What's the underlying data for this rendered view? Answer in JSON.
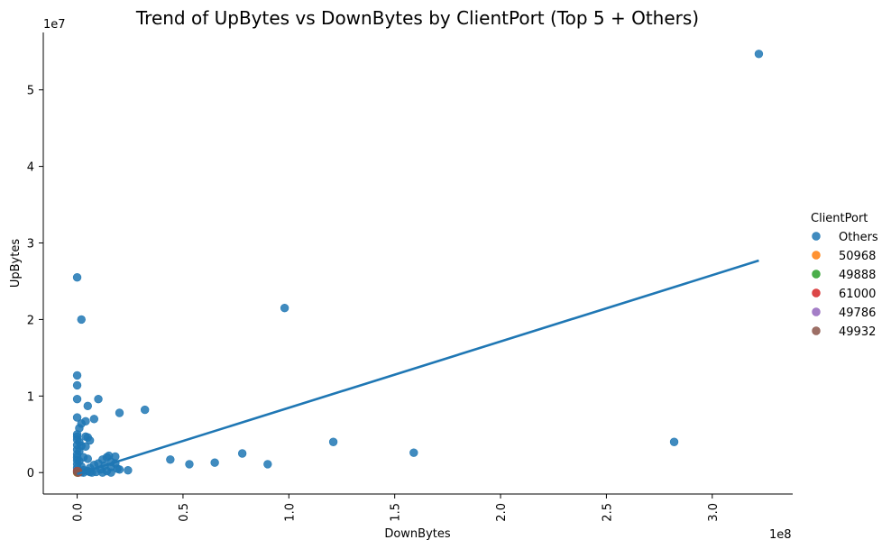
{
  "chart_data": {
    "type": "scatter",
    "title": "Trend of UpBytes vs DownBytes by ClientPort (Top 5 + Others)",
    "xlabel": "DownBytes",
    "ylabel": "UpBytes",
    "x_offset_text": "1e8",
    "y_offset_text": "1e7",
    "xlim": [
      -16000000,
      338000000
    ],
    "ylim": [
      -2800000,
      57500000
    ],
    "x_ticks": [
      0,
      50000000,
      100000000,
      150000000,
      200000000,
      250000000,
      300000000
    ],
    "x_tick_labels": [
      "0.0",
      "0.5",
      "1.0",
      "1.5",
      "2.0",
      "2.5",
      "3.0"
    ],
    "y_ticks": [
      0,
      10000000,
      20000000,
      30000000,
      40000000,
      50000000
    ],
    "y_tick_labels": [
      "0",
      "1",
      "2",
      "3",
      "4",
      "5"
    ],
    "legend": {
      "title": "ClientPort",
      "position": "right",
      "entries": [
        "Others",
        "50968",
        "49888",
        "61000",
        "49786",
        "49932"
      ]
    },
    "colors": {
      "Others": "#1f77b4",
      "50968": "#ff7f0e",
      "49888": "#2ca02c",
      "61000": "#d62728",
      "49786": "#9467bd",
      "49932": "#8c564b"
    },
    "trend_line": {
      "series": "Others",
      "x": [
        0,
        322000000
      ],
      "y": [
        -200000,
        27700000
      ]
    },
    "series": [
      {
        "name": "Others",
        "points": [
          [
            322000000,
            54700000
          ],
          [
            0,
            25500000
          ],
          [
            2000000,
            20000000
          ],
          [
            98000000,
            21500000
          ],
          [
            0,
            12700000
          ],
          [
            0,
            11400000
          ],
          [
            0,
            9600000
          ],
          [
            10000000,
            9600000
          ],
          [
            5000000,
            8700000
          ],
          [
            32000000,
            8200000
          ],
          [
            20000000,
            7800000
          ],
          [
            0,
            7200000
          ],
          [
            8000000,
            7000000
          ],
          [
            4000000,
            6700000
          ],
          [
            2000000,
            6400000
          ],
          [
            1000000,
            5800000
          ],
          [
            0,
            5000000
          ],
          [
            0,
            4700000
          ],
          [
            4000000,
            4700000
          ],
          [
            5000000,
            4600000
          ],
          [
            6000000,
            4200000
          ],
          [
            0,
            4300000
          ],
          [
            1000000,
            4000000
          ],
          [
            121000000,
            4000000
          ],
          [
            282000000,
            4000000
          ],
          [
            0,
            3600000
          ],
          [
            2000000,
            3500000
          ],
          [
            4000000,
            3400000
          ],
          [
            0,
            3000000
          ],
          [
            1000000,
            2800000
          ],
          [
            159000000,
            2600000
          ],
          [
            78000000,
            2500000
          ],
          [
            0,
            2400000
          ],
          [
            15000000,
            2200000
          ],
          [
            18000000,
            2100000
          ],
          [
            0,
            2000000
          ],
          [
            3000000,
            2000000
          ],
          [
            14000000,
            2000000
          ],
          [
            5000000,
            1800000
          ],
          [
            12000000,
            1700000
          ],
          [
            44000000,
            1700000
          ],
          [
            0,
            1600000
          ],
          [
            1000000,
            1500000
          ],
          [
            16000000,
            1400000
          ],
          [
            65000000,
            1300000
          ],
          [
            10000000,
            1200000
          ],
          [
            18000000,
            1200000
          ],
          [
            0,
            1100000
          ],
          [
            53000000,
            1100000
          ],
          [
            90000000,
            1100000
          ],
          [
            8000000,
            1000000
          ],
          [
            13000000,
            900000
          ],
          [
            2000000,
            800000
          ],
          [
            16000000,
            700000
          ],
          [
            0,
            600000
          ],
          [
            6000000,
            600000
          ],
          [
            19000000,
            500000
          ],
          [
            11000000,
            400000
          ],
          [
            3000000,
            300000
          ],
          [
            20000000,
            400000
          ],
          [
            24000000,
            300000
          ],
          [
            0,
            200000
          ],
          [
            5000000,
            200000
          ],
          [
            14000000,
            200000
          ],
          [
            9000000,
            100000
          ],
          [
            1000000,
            100000
          ],
          [
            0,
            0
          ],
          [
            3000000,
            0
          ],
          [
            7000000,
            0
          ],
          [
            12000000,
            0
          ],
          [
            16000000,
            0
          ],
          [
            2000000,
            50000
          ],
          [
            6000000,
            80000
          ]
        ]
      },
      {
        "name": "50968",
        "points": [
          [
            0,
            0
          ],
          [
            200000,
            100000
          ]
        ]
      },
      {
        "name": "49888",
        "points": [
          [
            100000,
            50000
          ],
          [
            300000,
            0
          ]
        ]
      },
      {
        "name": "61000",
        "points": [
          [
            500000,
            0
          ],
          [
            0,
            200000
          ]
        ]
      },
      {
        "name": "49786",
        "points": [
          [
            200000,
            150000
          ],
          [
            400000,
            50000
          ]
        ]
      },
      {
        "name": "49932",
        "points": [
          [
            0,
            100000
          ],
          [
            300000,
            200000
          ],
          [
            600000,
            0
          ]
        ]
      }
    ]
  }
}
